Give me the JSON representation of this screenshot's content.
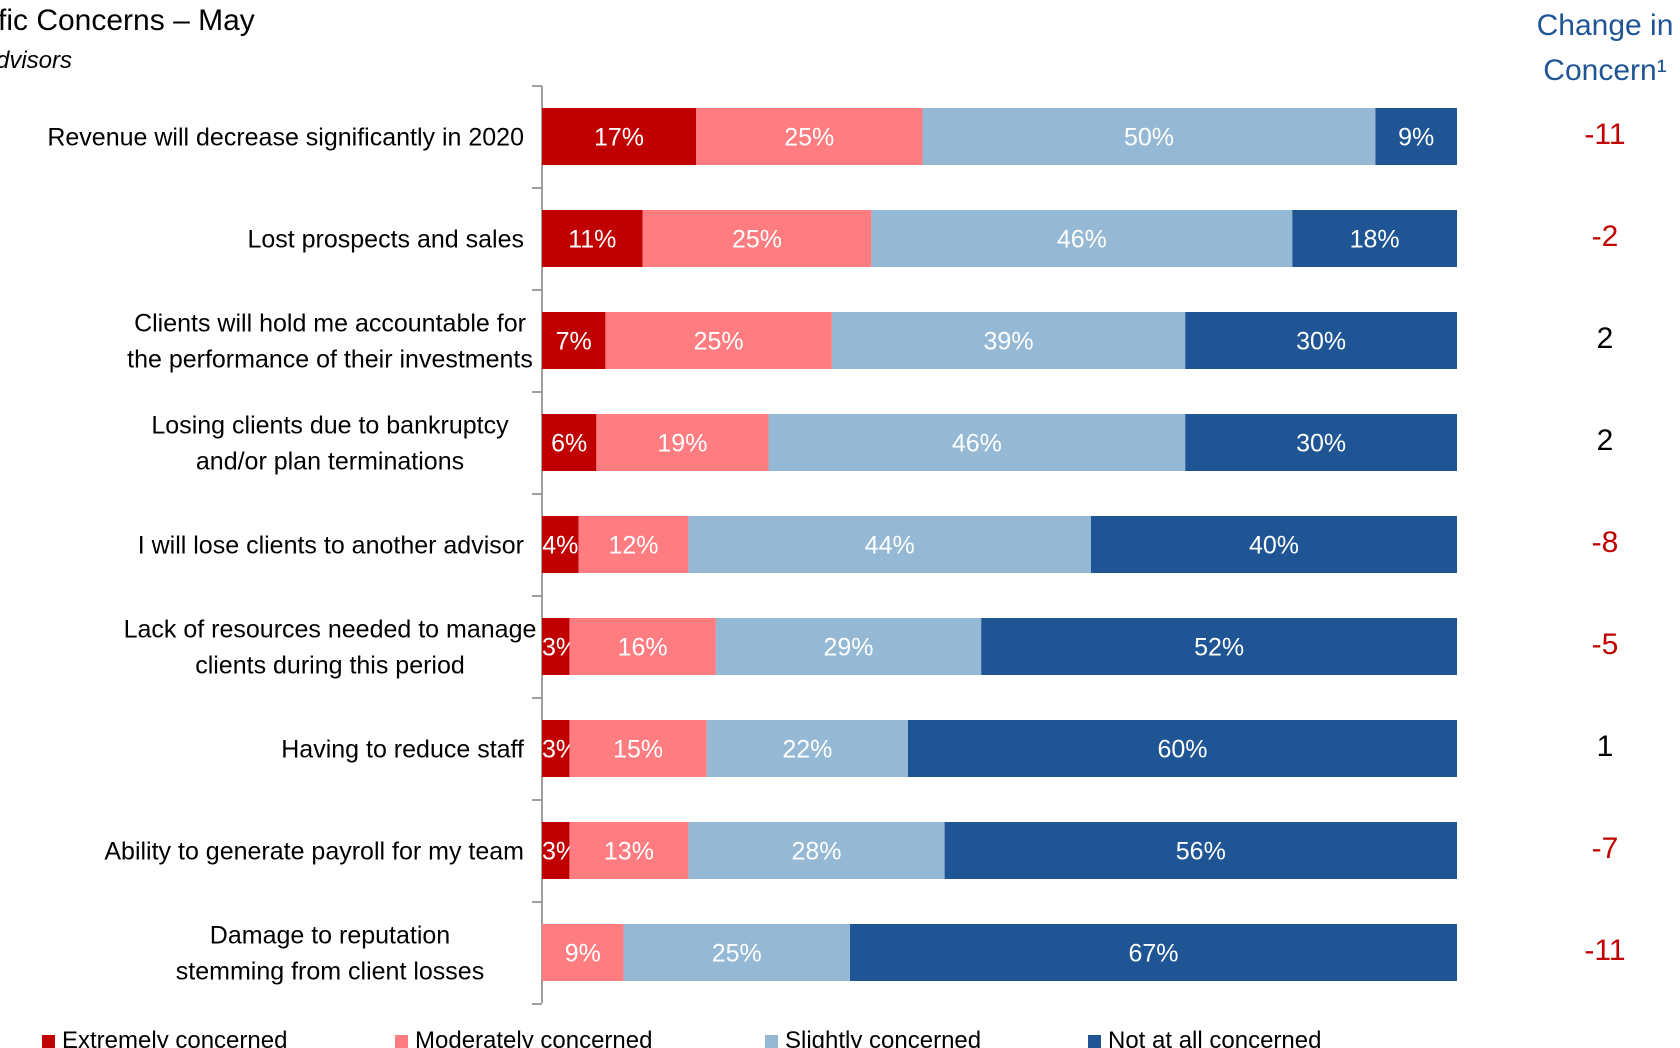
{
  "title": "fic Concerns – May",
  "subtitle": "dvisors",
  "change_header": [
    "Change in",
    "Concern¹"
  ],
  "chart_data": {
    "type": "bar",
    "orientation": "horizontal",
    "stacked": true,
    "categories": [
      [
        "Revenue will decrease significantly in 2020"
      ],
      [
        "Lost prospects and sales"
      ],
      [
        "Clients will hold me accountable for",
        "the performance of their investments"
      ],
      [
        "Losing clients due to bankruptcy",
        "and/or plan terminations"
      ],
      [
        "I will lose clients to another advisor"
      ],
      [
        "Lack of resources needed to manage",
        "clients during this period"
      ],
      [
        "Having to reduce staff"
      ],
      [
        "Ability to generate payroll for my team"
      ],
      [
        "Damage to reputation",
        "stemming from client losses"
      ]
    ],
    "series": [
      {
        "name": "Extremely concerned",
        "color": "#C00000",
        "values": [
          17,
          11,
          7,
          6,
          4,
          3,
          3,
          3,
          0
        ],
        "labels": [
          "17%",
          "11%",
          "7%",
          "6%",
          "4%",
          "3%",
          "3%",
          "3%",
          ""
        ]
      },
      {
        "name": "Moderately concerned",
        "color": "#FF7C80",
        "values": [
          25,
          25,
          25,
          19,
          12,
          16,
          15,
          13,
          9
        ],
        "labels": [
          "25%",
          "25%",
          "25%",
          "19%",
          "12%",
          "16%",
          "15%",
          "13%",
          "9%"
        ]
      },
      {
        "name": "Slightly concerned",
        "color": "#95B9D4",
        "values": [
          50,
          46,
          39,
          46,
          44,
          29,
          22,
          28,
          25
        ],
        "labels": [
          "50%",
          "46%",
          "39%",
          "46%",
          "44%",
          "29%",
          "22%",
          "28%",
          "25%"
        ]
      },
      {
        "name": "Not at all concerned",
        "color": "#1F5594",
        "values": [
          9,
          18,
          30,
          30,
          40,
          52,
          60,
          56,
          67
        ],
        "labels": [
          "9%",
          "18%",
          "30%",
          "30%",
          "40%",
          "52%",
          "60%",
          "56%",
          "67%"
        ]
      }
    ],
    "change_values": [
      "-11",
      "-2",
      "2",
      "2",
      "-8",
      "-5",
      "1",
      "-7",
      "-11"
    ],
    "change_colors": {
      "negative": "#C00000",
      "positive": "#000000"
    },
    "legend_position": "bottom",
    "grid": false
  }
}
